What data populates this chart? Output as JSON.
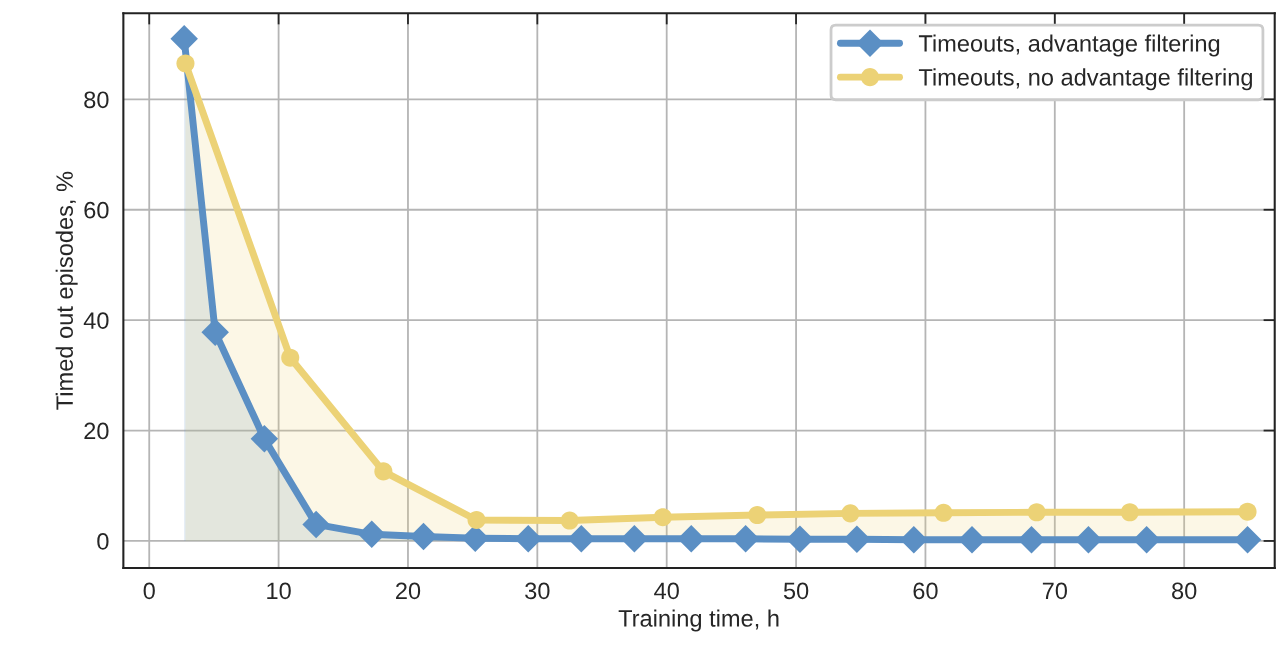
{
  "chart_data": {
    "type": "area",
    "xlabel": "Training time, h",
    "ylabel": "Timed out episodes, %",
    "xlim": [
      -2,
      87
    ],
    "ylim": [
      -4.9,
      95.6
    ],
    "xticks": [
      0,
      10,
      20,
      30,
      40,
      50,
      60,
      70,
      80
    ],
    "yticks": [
      0,
      20,
      40,
      60,
      80
    ],
    "grid": true,
    "legend": "top right",
    "series": [
      {
        "name": "Timeouts, advantage filtering",
        "color": "#5b8fc4",
        "marker": "diamond",
        "x": [
          2.7,
          5.1,
          8.9,
          12.9,
          17.2,
          21.2,
          25.2,
          29.3,
          33.4,
          37.5,
          41.9,
          46.1,
          50.3,
          54.7,
          59.1,
          63.6,
          68.2,
          72.6,
          77.1,
          84.9
        ],
        "values": [
          91,
          37.8,
          18.5,
          3.0,
          1.2,
          0.8,
          0.5,
          0.4,
          0.4,
          0.4,
          0.4,
          0.4,
          0.3,
          0.3,
          0.2,
          0.2,
          0.2,
          0.2,
          0.2,
          0.2
        ]
      },
      {
        "name": "Timeouts, no advantage filtering",
        "color": "#ecd276",
        "marker": "circle",
        "x": [
          2.8,
          10.9,
          18.1,
          25.3,
          32.5,
          39.7,
          47.0,
          54.2,
          61.4,
          68.6,
          75.8,
          84.9
        ],
        "values": [
          86.5,
          33.2,
          12.6,
          3.8,
          3.7,
          4.3,
          4.7,
          5.0,
          5.1,
          5.2,
          5.2,
          5.3
        ]
      }
    ]
  }
}
